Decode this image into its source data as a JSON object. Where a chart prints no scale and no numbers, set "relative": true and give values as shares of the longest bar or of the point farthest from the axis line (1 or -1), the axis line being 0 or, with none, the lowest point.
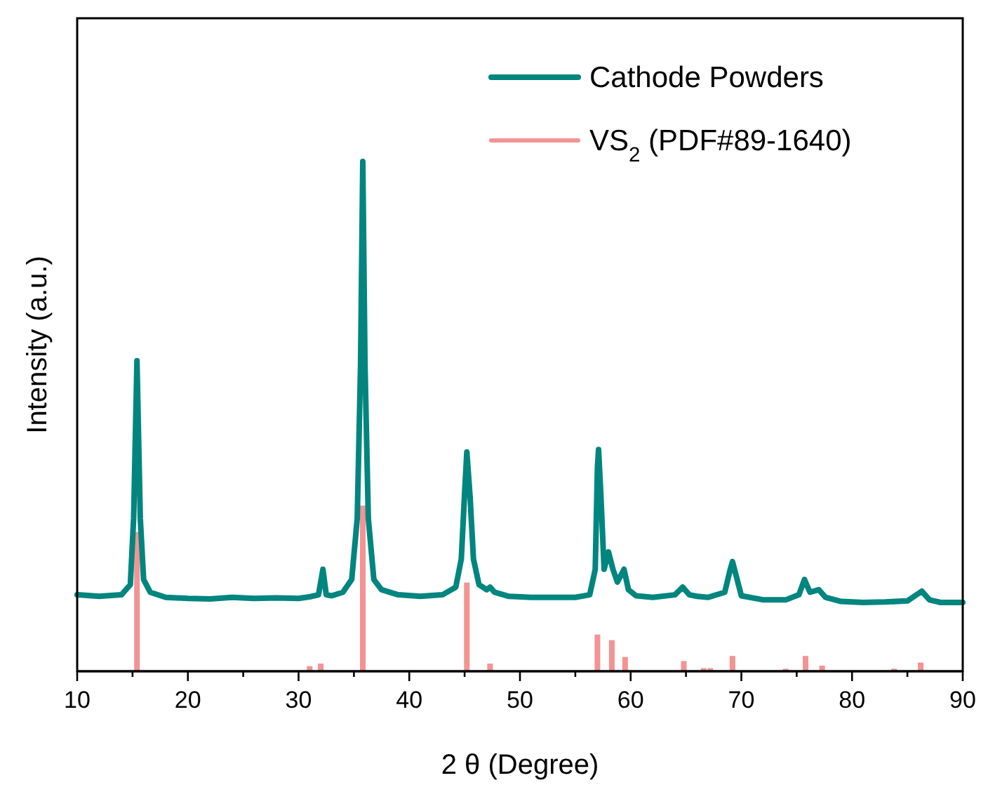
{
  "chart_data": {
    "type": "line",
    "xlabel": "2 θ (Degree)",
    "ylabel": "Intensity (a.u.)",
    "relative": true,
    "legend": "top right",
    "xlim": [
      10,
      90
    ],
    "xticks": [
      10,
      {
        "value": 15,
        "label": null
      },
      20,
      {
        "value": 25,
        "label": null
      },
      30,
      {
        "value": 35,
        "label": null
      },
      40,
      {
        "value": 45,
        "label": null
      },
      50,
      {
        "value": 55,
        "label": null
      },
      60,
      {
        "value": 65,
        "label": null
      },
      70,
      {
        "value": 75,
        "label": null
      },
      80,
      {
        "value": 85,
        "label": null
      },
      90
    ],
    "series": [
      {
        "name": "Cathode Powders",
        "color": "#00857f",
        "x": [
          10,
          12,
          14,
          14.8,
          15.1,
          15.4,
          15.7,
          16.0,
          16.6,
          18,
          20,
          22,
          24,
          26,
          28,
          30,
          31.0,
          31.8,
          32.2,
          32.5,
          33,
          34,
          34.8,
          35.3,
          35.6,
          35.8,
          36.0,
          36.3,
          36.8,
          37.5,
          39,
          41,
          43,
          44.2,
          44.7,
          45.0,
          45.2,
          45.5,
          45.8,
          46.3,
          47.0,
          47.3,
          47.7,
          49,
          51,
          53,
          55,
          56.3,
          56.8,
          57.0,
          57.1,
          57.3,
          57.6,
          58.0,
          58.4,
          58.8,
          59.4,
          59.8,
          60.5,
          62,
          64,
          64.7,
          65.3,
          66,
          67,
          68.5,
          69.0,
          69.2,
          69.5,
          70,
          72,
          74,
          75.2,
          75.7,
          76.2,
          77,
          77.6,
          79,
          81,
          83,
          85,
          86.3,
          87,
          88,
          90
        ],
        "values": [
          0.15,
          0.147,
          0.15,
          0.17,
          0.3,
          0.609,
          0.3,
          0.18,
          0.155,
          0.145,
          0.143,
          0.142,
          0.145,
          0.143,
          0.144,
          0.143,
          0.146,
          0.15,
          0.2,
          0.15,
          0.148,
          0.155,
          0.18,
          0.3,
          0.6,
          1,
          0.6,
          0.3,
          0.18,
          0.16,
          0.15,
          0.147,
          0.15,
          0.165,
          0.22,
          0.35,
          0.43,
          0.34,
          0.22,
          0.17,
          0.16,
          0.165,
          0.155,
          0.147,
          0.145,
          0.145,
          0.145,
          0.15,
          0.2,
          0.4,
          0.435,
          0.35,
          0.2,
          0.234,
          0.2,
          0.175,
          0.2,
          0.16,
          0.148,
          0.145,
          0.15,
          0.165,
          0.15,
          0.147,
          0.145,
          0.155,
          0.2,
          0.215,
          0.19,
          0.148,
          0.14,
          0.14,
          0.15,
          0.18,
          0.155,
          0.16,
          0.145,
          0.137,
          0.135,
          0.136,
          0.138,
          0.157,
          0.14,
          0.135,
          0.135
        ]
      },
      {
        "name": "VS$_{2}$ (PDF#89-1640)",
        "type": "bar",
        "color": "#f49393",
        "x": [
          15.4,
          31.0,
          32.0,
          35.8,
          45.2,
          47.3,
          57.0,
          58.3,
          59.5,
          64.8,
          66.6,
          67.2,
          69.2,
          74.0,
          75.8,
          77.3,
          83.8,
          86.2
        ],
        "values": [
          0.273,
          0.01,
          0.015,
          0.325,
          0.174,
          0.015,
          0.072,
          0.061,
          0.028,
          0.02,
          0.006,
          0.006,
          0.03,
          0.005,
          0.03,
          0.011,
          0.005,
          0.017
        ]
      }
    ]
  }
}
